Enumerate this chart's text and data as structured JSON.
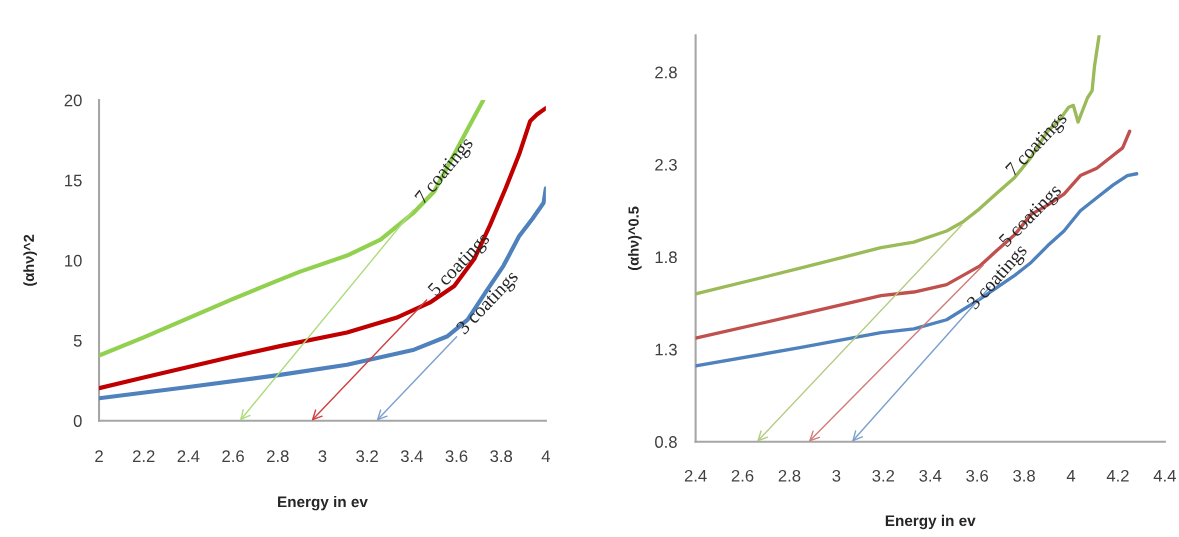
{
  "chart_data": [
    {
      "type": "line",
      "xlabel": "Energy in ev",
      "ylabel": "(αhν)^2",
      "xlim": [
        2,
        4
      ],
      "ylim": [
        0,
        20
      ],
      "xticks": [
        2,
        2.2,
        2.4,
        2.6,
        2.8,
        3,
        3.2,
        3.4,
        3.6,
        3.8,
        4
      ],
      "yticks": [
        0,
        5,
        10,
        15,
        20
      ],
      "grid": false,
      "series": [
        {
          "color": "#92d050",
          "x": [
            2,
            2.2,
            2.4,
            2.6,
            2.81,
            2.9,
            3.11,
            3.26,
            3.41,
            3.5,
            3.57,
            3.65,
            3.72
          ],
          "values": [
            4.06,
            5.2,
            6.4,
            7.6,
            8.8,
            9.3,
            10.3,
            11.3,
            13.0,
            14.3,
            16.1,
            18.2,
            20.0
          ]
        },
        {
          "color": "#c00000",
          "x": [
            2,
            2.2,
            2.4,
            2.6,
            2.81,
            3.11,
            3.33,
            3.48,
            3.59,
            3.68,
            3.75,
            3.82,
            3.88,
            3.93,
            3.96,
            4.0
          ],
          "values": [
            2.03,
            2.7,
            3.35,
            4.0,
            4.65,
            5.5,
            6.42,
            7.36,
            8.4,
            10.1,
            12.2,
            14.5,
            16.6,
            18.7,
            19.1,
            19.5
          ]
        },
        {
          "color": "#4f81bd",
          "x": [
            2,
            2.4,
            2.81,
            3.11,
            3.41,
            3.56,
            3.65,
            3.73,
            3.81,
            3.88,
            3.94,
            3.99,
            4.0
          ],
          "values": [
            1.4,
            2.1,
            2.86,
            3.49,
            4.43,
            5.27,
            6.31,
            8.0,
            9.66,
            11.5,
            12.6,
            13.6,
            14.5
          ]
        }
      ],
      "annotations": [
        "7 coatings",
        "5 coatings",
        "3 coatings"
      ]
    },
    {
      "type": "line",
      "xlabel": "Energy in ev",
      "ylabel": "(αhν)^0.5",
      "xlim": [
        2.4,
        4.4
      ],
      "ylim": [
        0.8,
        3.0
      ],
      "xticks": [
        2.4,
        2.6,
        2.8,
        3,
        3.2,
        3.4,
        3.6,
        3.8,
        4,
        4.2,
        4.4
      ],
      "yticks": [
        0.8,
        1.3,
        1.8,
        2.3,
        2.8
      ],
      "grid": false,
      "series": [
        {
          "color": "#9bbb59",
          "x": [
            2.4,
            2.85,
            3.19,
            3.33,
            3.47,
            3.54,
            3.61,
            3.68,
            3.76,
            3.83,
            3.9,
            3.95,
            3.99,
            4.01,
            4.03,
            4.07,
            4.09,
            4.1,
            4.12
          ],
          "values": [
            1.6,
            1.74,
            1.85,
            1.88,
            1.94,
            1.99,
            2.06,
            2.14,
            2.23,
            2.34,
            2.48,
            2.54,
            2.61,
            2.62,
            2.53,
            2.66,
            2.7,
            2.83,
            3.0
          ]
        },
        {
          "color": "#c0504d",
          "x": [
            2.4,
            2.85,
            3.19,
            3.33,
            3.47,
            3.61,
            3.68,
            3.76,
            3.83,
            3.9,
            3.97,
            4.04,
            4.11,
            4.18,
            4.22,
            4.25
          ],
          "values": [
            1.36,
            1.49,
            1.59,
            1.61,
            1.65,
            1.75,
            1.83,
            1.92,
            2.03,
            2.08,
            2.14,
            2.24,
            2.28,
            2.35,
            2.39,
            2.48
          ]
        },
        {
          "color": "#4f81bd",
          "x": [
            2.4,
            2.85,
            3.19,
            3.33,
            3.47,
            3.61,
            3.76,
            3.83,
            3.9,
            3.97,
            4.04,
            4.11,
            4.18,
            4.24,
            4.28
          ],
          "values": [
            1.21,
            1.31,
            1.39,
            1.41,
            1.46,
            1.57,
            1.7,
            1.77,
            1.86,
            1.94,
            2.05,
            2.12,
            2.19,
            2.24,
            2.25
          ]
        }
      ],
      "annotations": [
        "7 coatings",
        "5 coatings",
        "3 coatings"
      ]
    }
  ]
}
